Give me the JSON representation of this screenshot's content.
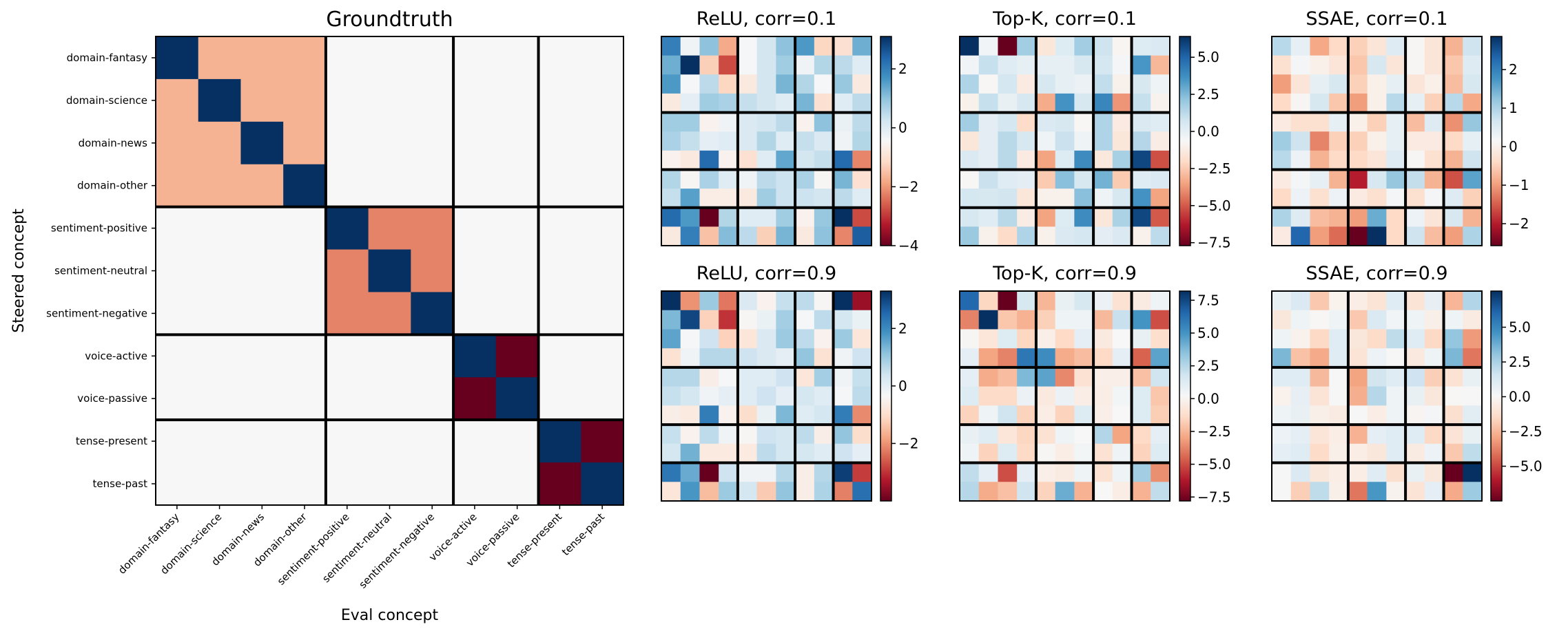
{
  "colormap": {
    "name": "RdBu",
    "stops": [
      "#67001f",
      "#b2182b",
      "#d6604d",
      "#f4a582",
      "#fddbc7",
      "#f7f7f7",
      "#d1e5f0",
      "#92c5de",
      "#4393c3",
      "#2166ac",
      "#053061"
    ]
  },
  "chart_data": [
    {
      "type": "heatmap",
      "title": "Groundtruth",
      "xlabel": "Eval concept",
      "ylabel": "Steered concept",
      "row_labels": [
        "domain-fantasy",
        "domain-science",
        "domain-news",
        "domain-other",
        "sentiment-positive",
        "sentiment-neutral",
        "sentiment-negative",
        "voice-active",
        "voice-passive",
        "tense-present",
        "tense-past"
      ],
      "col_labels": [
        "domain-fantasy",
        "domain-science",
        "domain-news",
        "domain-other",
        "sentiment-positive",
        "sentiment-neutral",
        "sentiment-negative",
        "voice-active",
        "voice-passive",
        "tense-present",
        "tense-past"
      ],
      "groups": [
        4,
        3,
        2,
        2
      ],
      "colorbar": false,
      "vmin": -1,
      "vmax": 1,
      "values": [
        [
          1,
          -0.35,
          -0.35,
          -0.35,
          0,
          0,
          0,
          0,
          0,
          0,
          0
        ],
        [
          -0.35,
          1,
          -0.35,
          -0.35,
          0,
          0,
          0,
          0,
          0,
          0,
          0
        ],
        [
          -0.35,
          -0.35,
          1,
          -0.35,
          0,
          0,
          0,
          0,
          0,
          0,
          0
        ],
        [
          -0.35,
          -0.35,
          -0.35,
          1,
          0,
          0,
          0,
          0,
          0,
          0,
          0
        ],
        [
          0,
          0,
          0,
          0,
          1,
          -0.5,
          -0.5,
          0,
          0,
          0,
          0
        ],
        [
          0,
          0,
          0,
          0,
          -0.5,
          1,
          -0.5,
          0,
          0,
          0,
          0
        ],
        [
          0,
          0,
          0,
          0,
          -0.5,
          -0.5,
          1,
          0,
          0,
          0,
          0
        ],
        [
          0,
          0,
          0,
          0,
          0,
          0,
          0,
          1,
          -1,
          0,
          0
        ],
        [
          0,
          0,
          0,
          0,
          0,
          0,
          0,
          -1,
          1,
          0,
          0
        ],
        [
          0,
          0,
          0,
          0,
          0,
          0,
          0,
          0,
          0,
          1,
          -1
        ],
        [
          0,
          0,
          0,
          0,
          0,
          0,
          0,
          0,
          0,
          -1,
          1
        ]
      ]
    },
    {
      "type": "heatmap",
      "title": "ReLU, corr=0.1",
      "groups": [
        4,
        3,
        2,
        2
      ],
      "vmin": -4.0,
      "vmax": 3.1,
      "colorbar_ticks": [
        2,
        0,
        -2,
        -4
      ],
      "colorbar_tick_labels": [
        "2",
        "0",
        "−2",
        "−4"
      ],
      "values": [
        [
          2.0,
          -0.3,
          1.0,
          -1.8,
          -0.4,
          0.2,
          1.0,
          1.6,
          -1.2,
          -1.0,
          1.3
        ],
        [
          1.3,
          3.1,
          -1.3,
          -2.8,
          -0.4,
          0.2,
          0.8,
          -0.3,
          0.6,
          0.5,
          0.0
        ],
        [
          1.6,
          -0.4,
          0.5,
          -1.2,
          -0.8,
          0.2,
          1.2,
          0.6,
          -0.4,
          0.9,
          -0.8
        ],
        [
          -0.8,
          -0.1,
          0.8,
          0.7,
          0.4,
          0.2,
          0.0,
          1.2,
          -1.0,
          0.0,
          0.5
        ],
        [
          0.8,
          0.8,
          -0.6,
          -0.3,
          0.1,
          0.2,
          0.5,
          -0.6,
          1.0,
          -0.2,
          0.5
        ],
        [
          0.7,
          0.4,
          -0.1,
          0.0,
          0.1,
          0.6,
          0.0,
          0.4,
          0.1,
          -0.3,
          0.6
        ],
        [
          -0.6,
          -0.8,
          2.3,
          -0.6,
          -1.0,
          0.0,
          1.4,
          0.2,
          0.4,
          2.3,
          -2.2
        ],
        [
          0.6,
          -0.5,
          0.7,
          0.0,
          -0.3,
          0.5,
          0.3,
          0.7,
          -0.5,
          1.2,
          -1.0
        ],
        [
          0.4,
          1.5,
          -0.7,
          -0.7,
          -0.8,
          0.8,
          0.3,
          0.3,
          0.2,
          0.5,
          0.0
        ],
        [
          2.3,
          1.6,
          -4.0,
          0.6,
          0.0,
          0.0,
          0.8,
          -0.6,
          0.9,
          3.1,
          -2.8
        ],
        [
          -0.8,
          2.0,
          -1.5,
          1.1,
          0.5,
          -1.3,
          1.2,
          -0.8,
          1.0,
          -2.2,
          2.5
        ]
      ]
    },
    {
      "type": "heatmap",
      "title": "Top-K, corr=0.1",
      "groups": [
        4,
        3,
        2,
        2
      ],
      "vmin": -7.7,
      "vmax": 6.4,
      "colorbar_ticks": [
        5.0,
        2.5,
        0.0,
        -2.5,
        -5.0,
        -7.5
      ],
      "colorbar_tick_labels": [
        "5.0",
        "2.5",
        "0.0",
        "−2.5",
        "−5.0",
        "−7.5"
      ],
      "values": [
        [
          6.4,
          -0.4,
          -7.7,
          1.8,
          -1.5,
          0.3,
          1.8,
          0.8,
          -0.8,
          0.3,
          0.4
        ],
        [
          -0.4,
          1.0,
          0.2,
          0.0,
          0.0,
          0.0,
          0.5,
          0.6,
          -0.5,
          3.5,
          -3.0
        ],
        [
          1.5,
          -0.7,
          0.6,
          -1.3,
          0.5,
          0.0,
          -0.2,
          1.1,
          -1.0,
          0.5,
          -0.3
        ],
        [
          -1.0,
          1.0,
          -0.1,
          0.5,
          -3.3,
          3.6,
          0.5,
          4.0,
          -3.8,
          1.0,
          -0.9
        ],
        [
          1.8,
          0.1,
          0.6,
          -2.0,
          0.4,
          0.5,
          -0.7,
          1.5,
          -1.3,
          0.4,
          0.2
        ],
        [
          -1.5,
          0.1,
          1.3,
          0.5,
          -0.3,
          0.9,
          -0.3,
          1.5,
          -1.5,
          1.4,
          -1.2
        ],
        [
          0.4,
          0.1,
          1.3,
          -1.3,
          -3.5,
          0.3,
          3.8,
          -1.4,
          1.7,
          5.8,
          -5.2
        ],
        [
          -0.7,
          0.9,
          0.2,
          0.1,
          -2.5,
          2.3,
          0.5,
          2.7,
          -2.5,
          0.2,
          0.4
        ],
        [
          0.6,
          0.5,
          0.7,
          -1.5,
          -1.0,
          -1.0,
          2.3,
          -0.3,
          0.5,
          3.6,
          -3.5
        ],
        [
          0.5,
          0.2,
          1.3,
          -1.2,
          -3.5,
          0.3,
          3.8,
          -1.5,
          1.6,
          5.8,
          -5.0
        ],
        [
          2.0,
          -1.0,
          -2.0,
          1.5,
          -1.0,
          0.4,
          0.6,
          0.1,
          0.4,
          -1.0,
          1.2
        ]
      ]
    },
    {
      "type": "heatmap",
      "title": "SSAE, corr=0.1",
      "groups": [
        4,
        3,
        2,
        2
      ],
      "vmin": -2.57,
      "vmax": 2.86,
      "colorbar_ticks": [
        2,
        1,
        0,
        -1,
        -2
      ],
      "colorbar_tick_labels": [
        "2",
        "1",
        "0",
        "−1",
        "−2"
      ],
      "values": [
        [
          0.9,
          0.4,
          -0.9,
          -0.4,
          -0.5,
          -0.2,
          0.5,
          0.1,
          -0.2,
          -0.8,
          0.7
        ],
        [
          -0.3,
          0.2,
          0.0,
          -0.2,
          -0.6,
          0.6,
          -0.2,
          0.1,
          -0.2,
          -0.6,
          0.5
        ],
        [
          -1.0,
          -0.2,
          0.4,
          0.6,
          -0.5,
          0.0,
          0.4,
          -0.2,
          0.0,
          -0.7,
          0.6
        ],
        [
          -0.4,
          0.1,
          0.6,
          -0.6,
          -1.0,
          0.0,
          0.9,
          0.4,
          -0.5,
          0.9,
          -0.9
        ],
        [
          -0.1,
          -0.3,
          -0.3,
          0.4,
          0.0,
          -0.5,
          0.4,
          -0.7,
          0.5,
          -1.1,
          1.2
        ],
        [
          1.1,
          0.7,
          -1.2,
          -0.5,
          -0.5,
          0.0,
          0.4,
          -0.1,
          -0.1,
          -0.4,
          0.4
        ],
        [
          0.9,
          0.3,
          -0.8,
          -0.4,
          -0.4,
          -0.2,
          0.5,
          0.1,
          -0.3,
          -0.8,
          0.7
        ],
        [
          -0.1,
          0.2,
          0.4,
          -0.8,
          -2.0,
          0.6,
          1.2,
          0.8,
          -0.8,
          -1.6,
          1.6
        ],
        [
          -0.4,
          0.3,
          -0.3,
          0.3,
          -0.1,
          -0.3,
          0.2,
          -0.3,
          0.2,
          0.5,
          -0.5
        ],
        [
          1.0,
          0.5,
          -0.7,
          -0.8,
          -1.0,
          1.5,
          -0.4,
          0.3,
          -0.2,
          0.6,
          -0.8
        ],
        [
          -0.1,
          2.3,
          -1.0,
          -1.4,
          -2.57,
          2.86,
          -0.4,
          0.7,
          -0.7,
          -1.0,
          1.0
        ]
      ]
    },
    {
      "type": "heatmap",
      "title": "ReLU, corr=0.9",
      "groups": [
        4,
        3,
        2,
        2
      ],
      "vmin": -4.0,
      "vmax": 3.3,
      "colorbar_ticks": [
        2,
        0,
        -2
      ],
      "colorbar_tick_labels": [
        "2",
        "0",
        "−2"
      ],
      "values": [
        [
          3.3,
          -2.0,
          1.0,
          -2.3,
          0.2,
          -0.5,
          0.5,
          0.6,
          -0.4,
          3.3,
          -3.5
        ],
        [
          1.3,
          3.0,
          -1.2,
          -3.0,
          -0.4,
          -0.1,
          0.9,
          -0.3,
          0.6,
          0.3,
          -0.1
        ],
        [
          1.6,
          -0.3,
          0.4,
          -1.2,
          -0.8,
          0.2,
          1.0,
          0.6,
          -0.5,
          1.0,
          -0.8
        ],
        [
          -0.9,
          -0.2,
          0.7,
          0.7,
          0.4,
          0.2,
          0.0,
          1.1,
          -0.9,
          -0.2,
          0.4
        ],
        [
          0.7,
          0.7,
          -0.6,
          -0.3,
          0.1,
          0.1,
          0.4,
          -0.8,
          0.9,
          -0.2,
          0.5
        ],
        [
          0.5,
          0.3,
          -0.2,
          0.0,
          0.1,
          0.4,
          0.0,
          0.3,
          0.1,
          -0.3,
          0.6
        ],
        [
          -0.6,
          -0.7,
          2.2,
          -0.5,
          -1.0,
          -0.1,
          1.3,
          0.1,
          0.3,
          2.2,
          -2.1
        ],
        [
          0.5,
          -0.5,
          0.6,
          -0.2,
          -0.4,
          0.4,
          0.3,
          0.6,
          -0.6,
          1.1,
          -1.0
        ],
        [
          0.3,
          1.4,
          -0.7,
          -0.7,
          -0.7,
          0.6,
          0.3,
          0.3,
          0.1,
          0.4,
          0.0
        ],
        [
          2.3,
          1.5,
          -4.0,
          0.4,
          -0.2,
          -0.2,
          0.7,
          -0.6,
          0.7,
          3.1,
          -2.9
        ],
        [
          -0.8,
          1.8,
          -1.5,
          1.0,
          0.3,
          -1.3,
          1.1,
          -0.6,
          0.8,
          -2.2,
          2.4
        ]
      ]
    },
    {
      "type": "heatmap",
      "title": "Top-K, corr=0.9",
      "groups": [
        4,
        3,
        2,
        2
      ],
      "vmin": -7.8,
      "vmax": 8.2,
      "colorbar_ticks": [
        7.5,
        5.0,
        2.5,
        0.0,
        -2.5,
        -5.0,
        -7.5
      ],
      "colorbar_tick_labels": [
        "7.5",
        "5.0",
        "2.5",
        "0.0",
        "−2.5",
        "−5.0",
        "−7.5"
      ],
      "values": [
        [
          6.5,
          -1.5,
          -7.8,
          1.5,
          -2.5,
          0.8,
          1.5,
          0.7,
          -1.0,
          -0.5,
          0.6
        ],
        [
          -3.8,
          8.2,
          -2.0,
          -2.6,
          -1.7,
          0.6,
          0.6,
          -2.4,
          2.0,
          5.0,
          -5.0
        ],
        [
          0.1,
          -0.8,
          1.3,
          -1.5,
          -0.3,
          -1.4,
          1.0,
          -0.6,
          0.2,
          0.8,
          -1.2
        ],
        [
          1.0,
          -3.0,
          -3.8,
          6.0,
          5.3,
          -2.8,
          -2.3,
          -1.4,
          1.0,
          -4.5,
          4.5
        ],
        [
          1.0,
          -2.8,
          -2.3,
          3.8,
          4.5,
          -3.7,
          -1.0,
          -0.3,
          -0.3,
          -2.2,
          1.8
        ],
        [
          1.3,
          -1.3,
          -1.3,
          0.7,
          -0.6,
          0.7,
          -0.4,
          -0.4,
          0.4,
          1.3,
          -2.0
        ],
        [
          -1.6,
          0.6,
          1.8,
          -1.6,
          -0.4,
          -1.6,
          1.3,
          -0.3,
          0.2,
          1.3,
          -1.8
        ],
        [
          0.8,
          1.2,
          -0.8,
          -1.5,
          -1.0,
          0.6,
          0.2,
          2.6,
          -3.0,
          -1.4,
          1.0
        ],
        [
          0.6,
          -1.6,
          1.3,
          -1.4,
          0.1,
          -0.4,
          0.4,
          -1.0,
          0.6,
          -1.6,
          1.3
        ],
        [
          2.2,
          1.0,
          -5.0,
          1.0,
          -0.3,
          -0.5,
          0.6,
          -1.0,
          0.6,
          3.0,
          -3.5
        ],
        [
          2.5,
          -2.8,
          -2.2,
          1.8,
          -1.6,
          4.2,
          -2.6,
          0.2,
          -0.4,
          -2.6,
          2.2
        ]
      ]
    },
    {
      "type": "heatmap",
      "title": "SSAE, corr=0.9",
      "groups": [
        4,
        3,
        2,
        2
      ],
      "vmin": -7.5,
      "vmax": 7.6,
      "colorbar_ticks": [
        5.0,
        2.5,
        0.0,
        -2.5,
        -5.0
      ],
      "colorbar_tick_labels": [
        "5.0",
        "2.5",
        "0.0",
        "−2.5",
        "−5.0"
      ],
      "values": [
        [
          0.6,
          1.2,
          -2.0,
          -0.3,
          -0.5,
          -1.0,
          1.0,
          -1.0,
          0.7,
          -2.5,
          2.3
        ],
        [
          -0.8,
          0.4,
          0.0,
          0.4,
          -2.0,
          1.2,
          0.3,
          0.4,
          -0.4,
          0.4,
          -0.6
        ],
        [
          0.4,
          -0.3,
          -1.5,
          1.0,
          -0.8,
          -1.4,
          2.0,
          1.0,
          -1.5,
          3.0,
          -3.2
        ],
        [
          3.5,
          -2.2,
          -2.8,
          1.0,
          -1.0,
          0.5,
          0.1,
          -0.7,
          0.4,
          3.5,
          -4.0
        ],
        [
          1.0,
          1.0,
          -2.4,
          0.1,
          -3.0,
          1.5,
          1.0,
          1.6,
          -1.8,
          -1.1,
          0.6
        ],
        [
          -0.3,
          0.7,
          -1.0,
          0.1,
          -2.7,
          2.2,
          0.4,
          0.6,
          -0.8,
          0.0,
          0.1
        ],
        [
          0.4,
          0.6,
          -0.4,
          -0.6,
          0.1,
          -0.5,
          0.4,
          -0.1,
          0.2,
          -1.2,
          0.9
        ],
        [
          0.5,
          0.8,
          -0.9,
          -0.5,
          -2.6,
          0.8,
          1.0,
          1.0,
          -1.5,
          -1.0,
          0.6
        ],
        [
          0.8,
          1.0,
          -1.4,
          -0.4,
          -0.5,
          -0.8,
          1.0,
          -0.6,
          0.5,
          -2.0,
          2.0
        ],
        [
          0.1,
          1.2,
          -0.8,
          -0.5,
          -0.5,
          1.0,
          -1.2,
          0.6,
          -0.8,
          -7.5,
          7.6
        ],
        [
          0.1,
          -1.8,
          2.0,
          -0.4,
          -4.0,
          4.5,
          -0.2,
          -1.0,
          0.8,
          -2.8,
          2.8
        ]
      ]
    }
  ]
}
